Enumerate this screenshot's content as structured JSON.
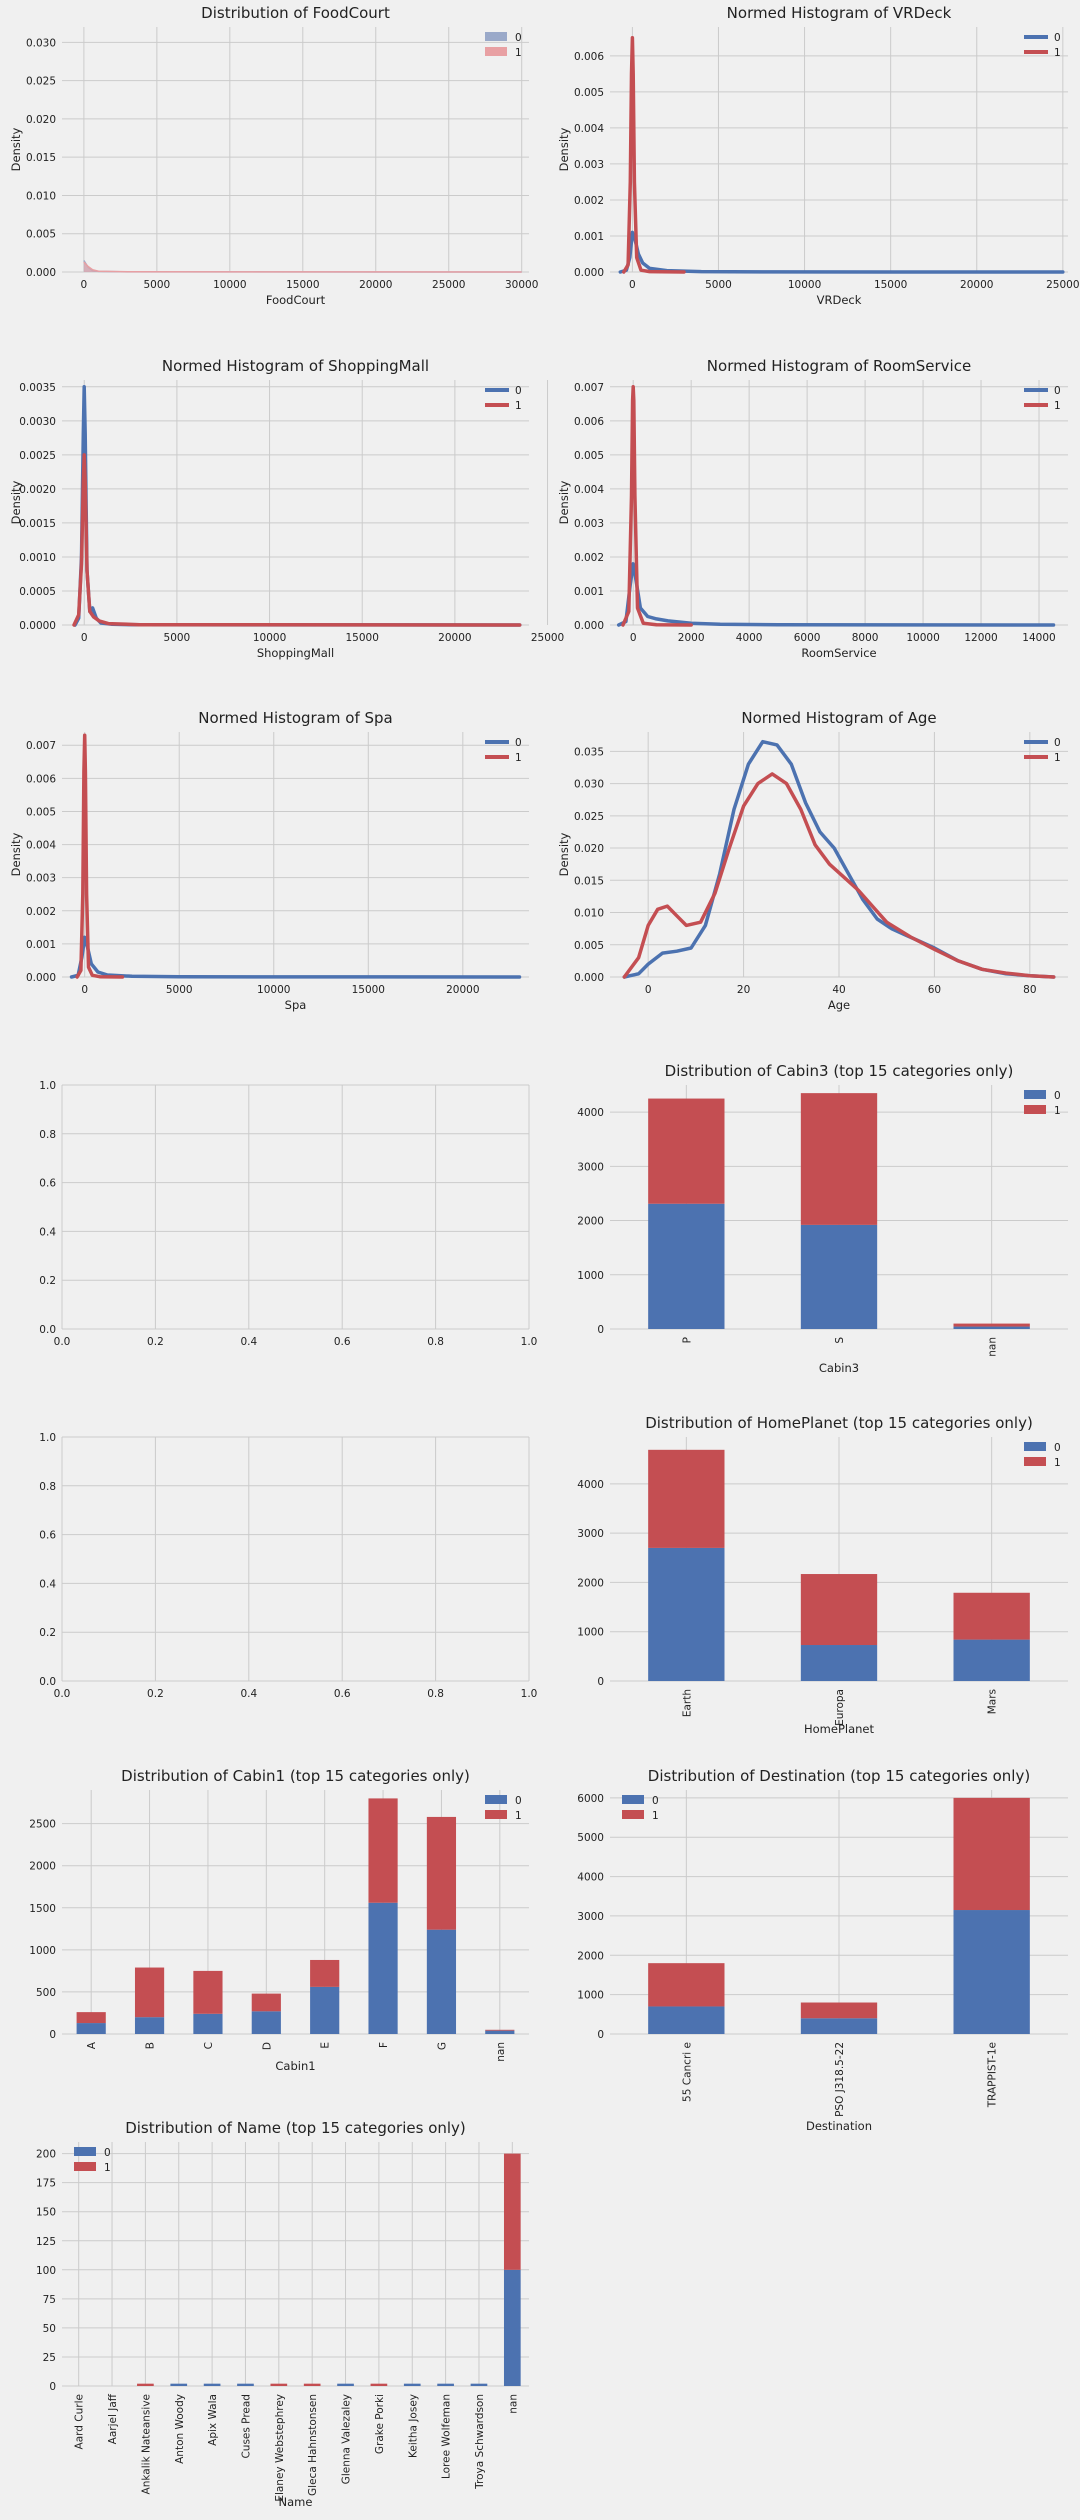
{
  "colors": {
    "c0": "#4c72b0",
    "c1": "#c44e52",
    "bg": "#f0f0f0",
    "grid": "#cbcbcb"
  },
  "chart_data": [
    {
      "id": "foodcourt",
      "type": "area",
      "title": "Distribution of FoodCourt",
      "xlabel": "FoodCourt",
      "ylabel": "Density",
      "xlim": [
        -1500,
        30500
      ],
      "ylim": [
        0,
        0.032
      ],
      "xticks": [
        0,
        5000,
        10000,
        15000,
        20000,
        25000,
        30000
      ],
      "xtick_labels": [
        "0",
        "5000",
        "10000",
        "15000",
        "20000",
        "25000",
        "30000"
      ],
      "yticks": [
        0,
        0.005,
        0.01,
        0.015,
        0.02,
        0.025,
        0.03
      ],
      "ytick_labels": [
        "0.000",
        "0.005",
        "0.010",
        "0.015",
        "0.020",
        "0.025",
        "0.030"
      ],
      "legend": "top-right",
      "legend_style": "patch",
      "series": [
        {
          "name": "0",
          "color": "#9aa9c9",
          "x": [
            0,
            100,
            300,
            600,
            1000,
            3000,
            30000
          ],
          "y": [
            0.0015,
            0.0012,
            0.0006,
            0.0002,
            8e-05,
            1e-05,
            0
          ]
        },
        {
          "name": "1",
          "color": "#e8a0a3",
          "x": [
            0,
            100,
            300,
            600,
            1000,
            3000,
            30000
          ],
          "y": [
            0.0013,
            0.0011,
            0.0007,
            0.0003,
            0.0001,
            2e-05,
            0
          ]
        }
      ]
    },
    {
      "id": "vrdeck",
      "type": "line",
      "title": "Normed Histogram of VRDeck",
      "xlabel": "VRDeck",
      "ylabel": "Density",
      "xlim": [
        -1300,
        25300
      ],
      "ylim": [
        0,
        0.0068
      ],
      "xticks": [
        0,
        5000,
        10000,
        15000,
        20000,
        25000
      ],
      "xtick_labels": [
        "0",
        "5000",
        "10000",
        "15000",
        "20000",
        "25000"
      ],
      "yticks": [
        0,
        0.001,
        0.002,
        0.003,
        0.004,
        0.005,
        0.006
      ],
      "ytick_labels": [
        "0.000",
        "0.001",
        "0.002",
        "0.003",
        "0.004",
        "0.005",
        "0.006"
      ],
      "legend": "top-right",
      "legend_style": "line",
      "series": [
        {
          "name": "0",
          "color": "#4c72b0",
          "x": [
            -700,
            -350,
            -150,
            0,
            150,
            350,
            600,
            1000,
            2000,
            4000,
            8000,
            25000
          ],
          "y": [
            0,
            5e-05,
            0.0004,
            0.0011,
            0.0009,
            0.0005,
            0.00025,
            0.0001,
            4e-05,
            1e-05,
            3e-06,
            0
          ]
        },
        {
          "name": "1",
          "color": "#c44e52",
          "x": [
            -500,
            -250,
            -120,
            -50,
            0,
            50,
            120,
            250,
            500,
            1000,
            3000
          ],
          "y": [
            0,
            0.0002,
            0.0025,
            0.0055,
            0.0065,
            0.0055,
            0.0025,
            0.0004,
            5e-05,
            1e-05,
            0
          ]
        }
      ]
    },
    {
      "id": "shoppingmall",
      "type": "line",
      "title": "Normed Histogram of ShoppingMall",
      "xlabel": "ShoppingMall",
      "ylabel": "Density",
      "xlim": [
        -1200,
        24000
      ],
      "ylim": [
        0,
        0.0036
      ],
      "xticks": [
        0,
        5000,
        10000,
        15000,
        20000,
        25000
      ],
      "xtick_labels": [
        "0",
        "5000",
        "10000",
        "15000",
        "20000",
        "25000"
      ],
      "yticks": [
        0,
        0.0005,
        0.001,
        0.0015,
        0.002,
        0.0025,
        0.003,
        0.0035
      ],
      "ytick_labels": [
        "0.0000",
        "0.0005",
        "0.0010",
        "0.0015",
        "0.0020",
        "0.0025",
        "0.0030",
        "0.0035"
      ],
      "legend": "top-right",
      "legend_style": "line",
      "series": [
        {
          "name": "0",
          "color": "#4c72b0",
          "x": [
            -500,
            -300,
            -150,
            -50,
            0,
            50,
            150,
            300,
            450,
            650,
            900,
            1500,
            3000,
            23500
          ],
          "y": [
            0,
            0.0001,
            0.001,
            0.0028,
            0.0035,
            0.0028,
            0.0008,
            0.0002,
            0.00025,
            0.0001,
            3e-05,
            1e-05,
            3e-06,
            0
          ]
        },
        {
          "name": "1",
          "color": "#c44e52",
          "x": [
            -550,
            -300,
            -150,
            -50,
            0,
            50,
            150,
            300,
            500,
            800,
            1300,
            3000,
            23500
          ],
          "y": [
            0,
            0.00015,
            0.0009,
            0.0021,
            0.0025,
            0.0021,
            0.0008,
            0.0002,
            0.00012,
            6e-05,
            2e-05,
            5e-06,
            0
          ]
        }
      ]
    },
    {
      "id": "roomservice",
      "type": "line",
      "title": "Normed Histogram of RoomService",
      "xlabel": "RoomService",
      "ylabel": "Density",
      "xlim": [
        -800,
        15000
      ],
      "ylim": [
        0,
        0.0072
      ],
      "xticks": [
        0,
        2000,
        4000,
        6000,
        8000,
        10000,
        12000,
        14000
      ],
      "xtick_labels": [
        "0",
        "2000",
        "4000",
        "6000",
        "8000",
        "10000",
        "12000",
        "14000"
      ],
      "yticks": [
        0,
        0.001,
        0.002,
        0.003,
        0.004,
        0.005,
        0.006,
        0.007
      ],
      "ytick_labels": [
        "0.000",
        "0.001",
        "0.002",
        "0.003",
        "0.004",
        "0.005",
        "0.006",
        "0.007"
      ],
      "legend": "top-right",
      "legend_style": "line",
      "series": [
        {
          "name": "0",
          "color": "#4c72b0",
          "x": [
            -500,
            -250,
            -100,
            0,
            100,
            250,
            500,
            800,
            1200,
            2000,
            3000,
            5000,
            14500
          ],
          "y": [
            0,
            0.0001,
            0.0012,
            0.0018,
            0.0013,
            0.0005,
            0.00025,
            0.00018,
            0.00012,
            5e-05,
            2e-05,
            5e-06,
            0
          ]
        },
        {
          "name": "1",
          "color": "#c44e52",
          "x": [
            -350,
            -150,
            -60,
            -20,
            0,
            20,
            60,
            150,
            350,
            800,
            2000
          ],
          "y": [
            0,
            0.0004,
            0.0038,
            0.0066,
            0.007,
            0.0066,
            0.0038,
            0.0005,
            5e-05,
            1e-05,
            0
          ]
        }
      ]
    },
    {
      "id": "spa",
      "type": "line",
      "title": "Normed Histogram of Spa",
      "xlabel": "Spa",
      "ylabel": "Density",
      "xlim": [
        -1200,
        23500
      ],
      "ylim": [
        0,
        0.0074
      ],
      "xticks": [
        0,
        5000,
        10000,
        15000,
        20000
      ],
      "xtick_labels": [
        "0",
        "5000",
        "10000",
        "15000",
        "20000"
      ],
      "yticks": [
        0,
        0.001,
        0.002,
        0.003,
        0.004,
        0.005,
        0.006,
        0.007
      ],
      "ytick_labels": [
        "0.000",
        "0.001",
        "0.002",
        "0.003",
        "0.004",
        "0.005",
        "0.006",
        "0.007"
      ],
      "legend": "top-right",
      "legend_style": "line",
      "series": [
        {
          "name": "0",
          "color": "#4c72b0",
          "x": [
            -700,
            -350,
            -150,
            0,
            150,
            350,
            700,
            1200,
            2500,
            5000,
            23000
          ],
          "y": [
            0,
            5e-05,
            0.0006,
            0.0012,
            0.0009,
            0.0004,
            0.00015,
            6e-05,
            2e-05,
            5e-06,
            0
          ]
        },
        {
          "name": "1",
          "color": "#c44e52",
          "x": [
            -400,
            -200,
            -100,
            -40,
            0,
            40,
            100,
            200,
            400,
            800,
            2000
          ],
          "y": [
            0,
            0.0002,
            0.0025,
            0.0062,
            0.0073,
            0.0062,
            0.0025,
            0.0003,
            5e-05,
            1e-05,
            0
          ]
        }
      ]
    },
    {
      "id": "age",
      "type": "line",
      "title": "Normed Histogram of Age",
      "xlabel": "Age",
      "ylabel": "Density",
      "xlim": [
        -8,
        88
      ],
      "ylim": [
        0,
        0.038
      ],
      "xticks": [
        0,
        20,
        40,
        60,
        80
      ],
      "xtick_labels": [
        "0",
        "20",
        "40",
        "60",
        "80"
      ],
      "yticks": [
        0,
        0.005,
        0.01,
        0.015,
        0.02,
        0.025,
        0.03,
        0.035
      ],
      "ytick_labels": [
        "0.000",
        "0.005",
        "0.010",
        "0.015",
        "0.020",
        "0.025",
        "0.030",
        "0.035"
      ],
      "legend": "top-right",
      "legend_style": "line",
      "series": [
        {
          "name": "0",
          "color": "#4c72b0",
          "x": [
            -5,
            -2,
            0,
            3,
            6,
            9,
            12,
            15,
            18,
            21,
            24,
            27,
            30,
            33,
            36,
            39,
            42,
            45,
            48,
            51,
            54,
            57,
            60,
            65,
            70,
            75,
            80,
            85
          ],
          "y": [
            0,
            0.0005,
            0.002,
            0.0037,
            0.004,
            0.0045,
            0.008,
            0.016,
            0.026,
            0.033,
            0.0365,
            0.036,
            0.033,
            0.027,
            0.0225,
            0.02,
            0.016,
            0.012,
            0.009,
            0.0075,
            0.0065,
            0.0055,
            0.0045,
            0.0025,
            0.0012,
            0.0005,
            0.0002,
            0
          ]
        },
        {
          "name": "1",
          "color": "#c44e52",
          "x": [
            -5,
            -2,
            0,
            2,
            4,
            6,
            8,
            11,
            14,
            17,
            20,
            23,
            26,
            29,
            32,
            35,
            38,
            41,
            44,
            47,
            50,
            55,
            60,
            65,
            70,
            75,
            80,
            85
          ],
          "y": [
            0,
            0.003,
            0.008,
            0.0105,
            0.011,
            0.0095,
            0.008,
            0.0085,
            0.013,
            0.02,
            0.0265,
            0.03,
            0.0315,
            0.03,
            0.026,
            0.0205,
            0.0175,
            0.0155,
            0.0135,
            0.011,
            0.0085,
            0.0062,
            0.0043,
            0.0025,
            0.0012,
            0.0006,
            0.0002,
            0
          ]
        }
      ]
    },
    {
      "id": "empty1",
      "type": "empty",
      "title": "",
      "xlabel": "",
      "ylabel": "",
      "xlim": [
        0,
        1
      ],
      "ylim": [
        0,
        1
      ],
      "xticks": [
        0,
        0.2,
        0.4,
        0.6,
        0.8,
        1.0
      ],
      "xtick_labels": [
        "0.0",
        "0.2",
        "0.4",
        "0.6",
        "0.8",
        "1.0"
      ],
      "yticks": [
        0,
        0.2,
        0.4,
        0.6,
        0.8,
        1.0
      ],
      "ytick_labels": [
        "0.0",
        "0.2",
        "0.4",
        "0.6",
        "0.8",
        "1.0"
      ]
    },
    {
      "id": "cabin3",
      "type": "bar",
      "stacked": true,
      "title": "Distribution of Cabin3 (top 15 categories only)",
      "xlabel": "Cabin3",
      "ylabel": "",
      "ylim": [
        0,
        4500
      ],
      "yticks": [
        0,
        1000,
        2000,
        3000,
        4000
      ],
      "ytick_labels": [
        "0",
        "1000",
        "2000",
        "3000",
        "4000"
      ],
      "categories": [
        "P",
        "S",
        "nan"
      ],
      "legend": "top-right",
      "legend_style": "patch",
      "series": [
        {
          "name": "0",
          "color": "#4c72b0",
          "values": [
            2310,
            1920,
            45
          ]
        },
        {
          "name": "1",
          "color": "#c44e52",
          "values": [
            1940,
            2430,
            55
          ]
        }
      ]
    },
    {
      "id": "empty2",
      "type": "empty",
      "title": "",
      "xlabel": "",
      "ylabel": "",
      "xlim": [
        0,
        1
      ],
      "ylim": [
        0,
        1
      ],
      "xticks": [
        0,
        0.2,
        0.4,
        0.6,
        0.8,
        1.0
      ],
      "xtick_labels": [
        "0.0",
        "0.2",
        "0.4",
        "0.6",
        "0.8",
        "1.0"
      ],
      "yticks": [
        0,
        0.2,
        0.4,
        0.6,
        0.8,
        1.0
      ],
      "ytick_labels": [
        "0.0",
        "0.2",
        "0.4",
        "0.6",
        "0.8",
        "1.0"
      ]
    },
    {
      "id": "homeplanet",
      "type": "bar",
      "stacked": true,
      "title": "Distribution of HomePlanet (top 15 categories only)",
      "xlabel": "HomePlanet",
      "ylabel": "",
      "ylim": [
        0,
        4950
      ],
      "yticks": [
        0,
        1000,
        2000,
        3000,
        4000
      ],
      "ytick_labels": [
        "0",
        "1000",
        "2000",
        "3000",
        "4000"
      ],
      "categories": [
        "Earth",
        "Europa",
        "Mars"
      ],
      "legend": "top-right",
      "legend_style": "patch",
      "series": [
        {
          "name": "0",
          "color": "#4c72b0",
          "values": [
            2700,
            730,
            840
          ]
        },
        {
          "name": "1",
          "color": "#c44e52",
          "values": [
            1990,
            1440,
            950
          ]
        }
      ]
    },
    {
      "id": "cabin1",
      "type": "bar",
      "stacked": true,
      "title": "Distribution of Cabin1 (top 15 categories only)",
      "xlabel": "Cabin1",
      "ylabel": "",
      "ylim": [
        0,
        2900
      ],
      "yticks": [
        0,
        500,
        1000,
        1500,
        2000,
        2500
      ],
      "ytick_labels": [
        "0",
        "500",
        "1000",
        "1500",
        "2000",
        "2500"
      ],
      "categories": [
        "A",
        "B",
        "C",
        "D",
        "E",
        "F",
        "G",
        "nan"
      ],
      "legend": "top-right",
      "legend_style": "patch",
      "series": [
        {
          "name": "0",
          "color": "#4c72b0",
          "values": [
            130,
            200,
            240,
            270,
            560,
            1560,
            1240,
            40
          ]
        },
        {
          "name": "1",
          "color": "#c44e52",
          "values": [
            130,
            590,
            510,
            210,
            320,
            1240,
            1340,
            10
          ]
        }
      ]
    },
    {
      "id": "destination",
      "type": "bar",
      "stacked": true,
      "title": "Distribution of Destination (top 15 categories only)",
      "xlabel": "Destination",
      "ylabel": "",
      "ylim": [
        0,
        6200
      ],
      "yticks": [
        0,
        1000,
        2000,
        3000,
        4000,
        5000,
        6000
      ],
      "ytick_labels": [
        "0",
        "1000",
        "2000",
        "3000",
        "4000",
        "5000",
        "6000"
      ],
      "categories": [
        "55 Cancri e",
        "PSO J318.5-22",
        "TRAPPIST-1e"
      ],
      "legend": "top-left",
      "legend_style": "patch",
      "series": [
        {
          "name": "0",
          "color": "#4c72b0",
          "values": [
            700,
            400,
            3150
          ]
        },
        {
          "name": "1",
          "color": "#c44e52",
          "values": [
            1100,
            400,
            2850
          ]
        }
      ]
    },
    {
      "id": "name",
      "type": "bar",
      "stacked": true,
      "title": "Distribution of Name (top 15 categories only)",
      "xlabel": "Name",
      "ylabel": "",
      "ylim": [
        0,
        210
      ],
      "yticks": [
        0,
        25,
        50,
        75,
        100,
        125,
        150,
        175,
        200
      ],
      "ytick_labels": [
        "0",
        "25",
        "50",
        "75",
        "100",
        "125",
        "150",
        "175",
        "200"
      ],
      "categories": [
        "Aard Curle",
        "Aarjel Jaff",
        "Ankalik Nateansive",
        "Anton Woody",
        "Apix Wala",
        "Cuses Pread",
        "Elaney Webstephrey",
        "Gleca Hahnstonsen",
        "Glenna Valezaley",
        "Grake Porki",
        "Keitha Josey",
        "Loree Wolfeman",
        "Troya Schwardson",
        "nan"
      ],
      "legend": "top-left",
      "legend_style": "patch",
      "series": [
        {
          "name": "0",
          "color": "#4c72b0",
          "values": [
            0,
            0,
            0,
            2,
            2,
            2,
            0,
            0,
            2,
            0,
            2,
            2,
            2,
            100
          ]
        },
        {
          "name": "1",
          "color": "#c44e52",
          "values": [
            0,
            0,
            2,
            0,
            0,
            0,
            2,
            2,
            0,
            2,
            0,
            0,
            0,
            100
          ]
        }
      ]
    }
  ]
}
